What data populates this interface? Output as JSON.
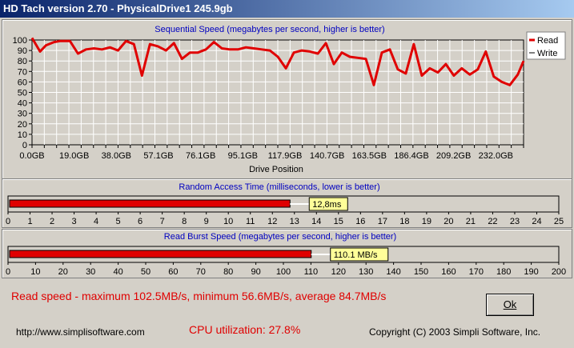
{
  "window": {
    "title": "HD Tach version 2.70 - PhysicalDrive1 245.9gb"
  },
  "sequential": {
    "title": "Sequential Speed (megabytes per second, higher is better)",
    "xlabel": "Drive Position",
    "legend": {
      "read": "Read",
      "write": "Write"
    },
    "yticks": [
      "0",
      "10",
      "20",
      "30",
      "40",
      "50",
      "60",
      "70",
      "80",
      "90",
      "100"
    ],
    "xticks": [
      "0.0GB",
      "19.0GB",
      "38.0GB",
      "57.1GB",
      "76.1GB",
      "95.1GB",
      "117.9GB",
      "140.7GB",
      "163.5GB",
      "186.4GB",
      "209.2GB",
      "232.0GB"
    ]
  },
  "access": {
    "title": "Random Access Time (milliseconds, lower is better)",
    "value_label": "12,8ms",
    "ticks": [
      "0",
      "1",
      "2",
      "3",
      "4",
      "5",
      "6",
      "7",
      "8",
      "9",
      "10",
      "11",
      "12",
      "13",
      "14",
      "15",
      "16",
      "17",
      "18",
      "19",
      "20",
      "21",
      "22",
      "23",
      "24",
      "25"
    ]
  },
  "burst": {
    "title": "Read Burst Speed (megabytes per second, higher is better)",
    "value_label": "110.1 MB/s",
    "ticks": [
      "0",
      "10",
      "20",
      "30",
      "40",
      "50",
      "60",
      "70",
      "80",
      "90",
      "100",
      "110",
      "120",
      "130",
      "140",
      "150",
      "160",
      "170",
      "180",
      "190",
      "200"
    ]
  },
  "status": {
    "read_speed": "Read speed - maximum 102.5MB/s, minimum 56.6MB/s, average 84.7MB/s",
    "cpu": "CPU utilization: 27.8%",
    "url": "http://www.simplisoftware.com",
    "copyright": "Copyright (C) 2003 Simpli Software, Inc.",
    "ok_label": "Ok"
  },
  "colors": {
    "read": "#e00000",
    "write": "#ffffff",
    "label_bg": "#ffff99",
    "title": "#0000c0"
  },
  "chart_data": [
    {
      "type": "line",
      "title": "Sequential Speed (megabytes per second, higher is better)",
      "xlabel": "Drive Position",
      "ylabel": "",
      "ylim": [
        0,
        100
      ],
      "x_unit": "GB",
      "xlim": [
        0,
        245.9
      ],
      "grid": true,
      "legend": "top-right",
      "series": [
        {
          "name": "Read",
          "x": [
            0,
            4,
            7,
            11,
            14,
            19,
            23,
            27,
            31,
            35,
            39,
            43,
            47,
            51,
            55,
            59,
            63,
            67,
            71,
            75,
            79,
            83,
            87,
            91,
            95,
            99,
            103,
            107,
            111,
            115,
            119,
            123,
            127,
            131,
            135,
            139,
            143,
            147,
            151,
            155,
            159,
            163,
            167,
            171,
            175,
            179,
            183,
            187,
            191,
            195,
            199,
            203,
            207,
            211,
            215,
            219,
            223,
            227,
            231,
            235,
            239,
            243,
            245.9
          ],
          "y": [
            102,
            89,
            95,
            98,
            99,
            99,
            87,
            91,
            92,
            91,
            93,
            90,
            99,
            96,
            66,
            96,
            94,
            90,
            97,
            82,
            88,
            88,
            91,
            98,
            92,
            91,
            91,
            93,
            92,
            91,
            90,
            84,
            73,
            88,
            90,
            89,
            87,
            97,
            77,
            88,
            84,
            83,
            82,
            57,
            88,
            91,
            72,
            68,
            96,
            66,
            73,
            69,
            77,
            66,
            73,
            67,
            72,
            89,
            65,
            60,
            57,
            67,
            80
          ]
        },
        {
          "name": "Write",
          "x": [],
          "y": []
        }
      ]
    },
    {
      "type": "bar",
      "title": "Random Access Time (milliseconds, lower is better)",
      "categories": [
        "Read"
      ],
      "values": [
        12.8
      ],
      "xlim": [
        0,
        25
      ]
    },
    {
      "type": "bar",
      "title": "Read Burst Speed (megabytes per second, higher is better)",
      "categories": [
        "Read"
      ],
      "values": [
        110.1
      ],
      "xlim": [
        0,
        200
      ]
    }
  ]
}
